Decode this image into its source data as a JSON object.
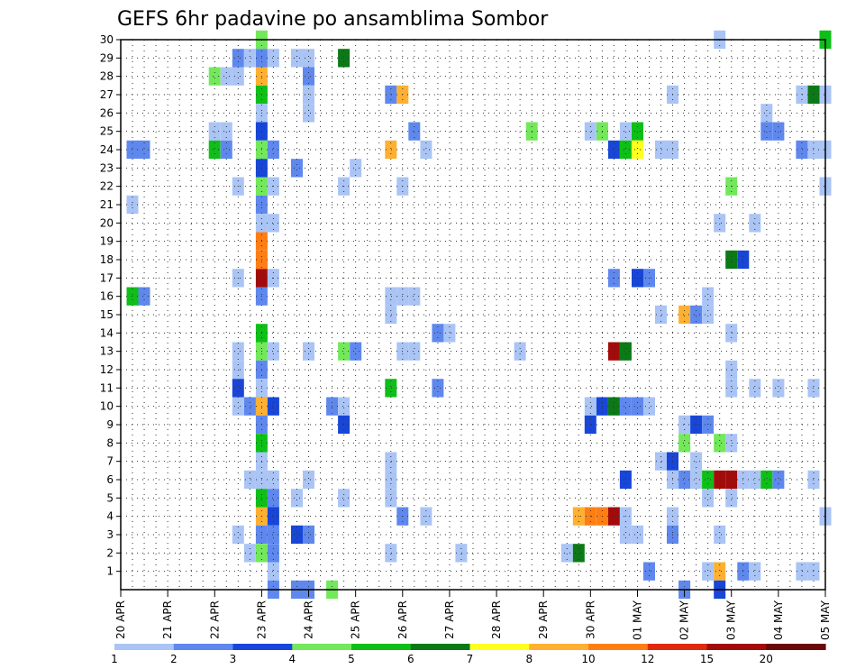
{
  "chart_data": {
    "type": "heatmap",
    "title": "GEFS 6hr padavine po ansamblima Sombor",
    "xlabel": "",
    "ylabel": "",
    "x_tick_labels": [
      "20 APR",
      "21 APR",
      "22 APR",
      "23 APR",
      "24 APR",
      "25 APR",
      "26 APR",
      "27 APR",
      "28 APR",
      "29 APR",
      "30 APR",
      "01 MAY",
      "02 MAY",
      "03 MAY",
      "04 MAY",
      "05 MAY"
    ],
    "y_tick_labels": [
      "1",
      "2",
      "3",
      "4",
      "5",
      "6",
      "7",
      "8",
      "9",
      "10",
      "11",
      "12",
      "13",
      "14",
      "15",
      "16",
      "17",
      "18",
      "19",
      "20",
      "21",
      "22",
      "23",
      "24",
      "25",
      "26",
      "27",
      "28",
      "29",
      "30"
    ],
    "x_range_days": [
      0,
      15
    ],
    "y_range": [
      0,
      30
    ],
    "grid": true,
    "legend_position": "bottom",
    "colorbar": {
      "labels": [
        "1",
        "2",
        "3",
        "4",
        "5",
        "6",
        "7",
        "8",
        "10",
        "12",
        "15",
        "20"
      ],
      "colors": [
        "#aac4f5",
        "#5f88ee",
        "#1846d8",
        "#72e85a",
        "#0ebf18",
        "#0b7a16",
        "#ffff20",
        "#ffb030",
        "#ff7e14",
        "#e02a0a",
        "#a30b0b",
        "#6b0808"
      ]
    },
    "cells": [
      [
        3.0,
        30,
        4
      ],
      [
        3.0,
        29,
        2
      ],
      [
        3.0,
        28,
        8
      ],
      [
        3.0,
        27,
        5
      ],
      [
        3.0,
        26,
        1
      ],
      [
        3.0,
        25,
        3
      ],
      [
        3.0,
        24,
        4
      ],
      [
        3.0,
        23,
        3
      ],
      [
        3.0,
        22,
        4
      ],
      [
        3.0,
        21,
        2
      ],
      [
        3.0,
        20,
        1
      ],
      [
        3.0,
        19,
        9
      ],
      [
        3.0,
        18,
        9
      ],
      [
        3.0,
        17,
        11
      ],
      [
        3.0,
        16,
        2
      ],
      [
        3.0,
        14,
        5
      ],
      [
        3.0,
        13,
        4
      ],
      [
        3.0,
        12,
        2
      ],
      [
        3.0,
        11,
        1
      ],
      [
        3.0,
        10,
        8
      ],
      [
        3.0,
        9,
        2
      ],
      [
        3.0,
        8,
        5
      ],
      [
        3.0,
        7,
        1
      ],
      [
        3.0,
        6,
        1
      ],
      [
        3.0,
        5,
        5
      ],
      [
        3.0,
        4,
        8
      ],
      [
        3.0,
        3,
        2
      ],
      [
        3.0,
        2,
        4
      ],
      [
        0.25,
        24,
        2
      ],
      [
        0.5,
        24,
        2
      ],
      [
        0.25,
        16,
        5
      ],
      [
        0.5,
        16,
        2
      ],
      [
        0.25,
        21,
        1
      ],
      [
        2.0,
        28,
        4
      ],
      [
        2.25,
        28,
        1
      ],
      [
        2.0,
        25,
        1
      ],
      [
        2.25,
        25,
        1
      ],
      [
        2.0,
        24,
        5
      ],
      [
        2.25,
        24,
        2
      ],
      [
        2.5,
        29,
        2
      ],
      [
        2.5,
        28,
        1
      ],
      [
        2.5,
        22,
        1
      ],
      [
        2.5,
        17,
        1
      ],
      [
        2.5,
        12,
        1
      ],
      [
        2.5,
        11,
        3
      ],
      [
        2.5,
        10,
        1
      ],
      [
        2.5,
        3,
        1
      ],
      [
        2.5,
        13,
        1
      ],
      [
        2.75,
        29,
        1
      ],
      [
        2.75,
        10,
        2
      ],
      [
        2.75,
        6,
        1
      ],
      [
        2.75,
        2,
        1
      ],
      [
        3.25,
        29,
        1
      ],
      [
        3.25,
        24,
        2
      ],
      [
        3.25,
        22,
        1
      ],
      [
        3.25,
        20,
        1
      ],
      [
        3.25,
        17,
        1
      ],
      [
        3.25,
        13,
        1
      ],
      [
        3.25,
        10,
        3
      ],
      [
        3.25,
        6,
        1
      ],
      [
        3.25,
        5,
        2
      ],
      [
        3.25,
        4,
        3
      ],
      [
        3.25,
        3,
        2
      ],
      [
        3.25,
        2,
        2
      ],
      [
        3.25,
        1,
        1
      ],
      [
        3.25,
        0,
        2
      ],
      [
        3.75,
        29,
        1
      ],
      [
        3.75,
        23,
        2
      ],
      [
        3.75,
        5,
        1
      ],
      [
        3.75,
        3,
        3
      ],
      [
        3.75,
        0,
        2
      ],
      [
        4.0,
        29,
        1
      ],
      [
        4.0,
        28,
        2
      ],
      [
        4.0,
        27,
        1
      ],
      [
        4.0,
        26,
        1
      ],
      [
        4.0,
        13,
        1
      ],
      [
        4.0,
        6,
        1
      ],
      [
        4.0,
        3,
        2
      ],
      [
        4.0,
        0,
        2
      ],
      [
        4.5,
        10,
        2
      ],
      [
        4.5,
        0,
        4
      ],
      [
        4.75,
        29,
        6
      ],
      [
        4.75,
        22,
        1
      ],
      [
        4.75,
        13,
        4
      ],
      [
        4.75,
        10,
        1
      ],
      [
        4.75,
        9,
        3
      ],
      [
        4.75,
        5,
        1
      ],
      [
        5.0,
        23,
        1
      ],
      [
        5.0,
        13,
        2
      ],
      [
        5.75,
        27,
        2
      ],
      [
        5.75,
        24,
        8
      ],
      [
        5.75,
        16,
        1
      ],
      [
        5.75,
        15,
        1
      ],
      [
        5.75,
        11,
        5
      ],
      [
        5.75,
        7,
        1
      ],
      [
        5.75,
        6,
        1
      ],
      [
        5.75,
        5,
        1
      ],
      [
        5.75,
        2,
        1
      ],
      [
        6.0,
        27,
        8
      ],
      [
        6.0,
        22,
        1
      ],
      [
        6.0,
        16,
        1
      ],
      [
        6.0,
        13,
        1
      ],
      [
        6.0,
        4,
        2
      ],
      [
        6.25,
        25,
        2
      ],
      [
        6.25,
        16,
        1
      ],
      [
        6.25,
        13,
        1
      ],
      [
        6.5,
        24,
        1
      ],
      [
        6.5,
        4,
        1
      ],
      [
        6.75,
        14,
        2
      ],
      [
        6.75,
        11,
        2
      ],
      [
        7.0,
        14,
        1
      ],
      [
        7.25,
        2,
        1
      ],
      [
        8.5,
        13,
        1
      ],
      [
        8.75,
        25,
        4
      ],
      [
        9.5,
        2,
        1
      ],
      [
        9.75,
        2,
        6
      ],
      [
        9.75,
        4,
        8
      ],
      [
        10.0,
        25,
        1
      ],
      [
        10.0,
        10,
        1
      ],
      [
        10.0,
        9,
        3
      ],
      [
        10.0,
        4,
        9
      ],
      [
        10.25,
        25,
        4
      ],
      [
        10.25,
        10,
        3
      ],
      [
        10.25,
        4,
        9
      ],
      [
        10.5,
        24,
        3
      ],
      [
        10.5,
        17,
        2
      ],
      [
        10.5,
        13,
        11
      ],
      [
        10.5,
        10,
        6
      ],
      [
        10.5,
        4,
        11
      ],
      [
        10.75,
        25,
        1
      ],
      [
        10.75,
        24,
        5
      ],
      [
        10.75,
        13,
        6
      ],
      [
        10.75,
        10,
        2
      ],
      [
        10.75,
        6,
        3
      ],
      [
        10.75,
        4,
        1
      ],
      [
        10.75,
        3,
        1
      ],
      [
        11.0,
        25,
        5
      ],
      [
        11.0,
        24,
        7
      ],
      [
        11.0,
        17,
        3
      ],
      [
        11.0,
        10,
        2
      ],
      [
        11.0,
        3,
        1
      ],
      [
        11.25,
        17,
        2
      ],
      [
        11.25,
        10,
        1
      ],
      [
        11.25,
        1,
        2
      ],
      [
        11.5,
        24,
        1
      ],
      [
        11.5,
        15,
        1
      ],
      [
        11.5,
        7,
        1
      ],
      [
        11.75,
        27,
        1
      ],
      [
        11.75,
        24,
        1
      ],
      [
        11.75,
        7,
        3
      ],
      [
        11.75,
        6,
        1
      ],
      [
        11.75,
        4,
        1
      ],
      [
        11.75,
        3,
        2
      ],
      [
        12.0,
        15,
        8
      ],
      [
        12.0,
        9,
        1
      ],
      [
        12.0,
        8,
        4
      ],
      [
        12.0,
        6,
        2
      ],
      [
        12.0,
        0,
        2
      ],
      [
        12.25,
        15,
        2
      ],
      [
        12.25,
        9,
        3
      ],
      [
        12.25,
        6,
        1
      ],
      [
        12.25,
        7,
        1
      ],
      [
        12.5,
        16,
        1
      ],
      [
        12.5,
        15,
        1
      ],
      [
        12.5,
        9,
        2
      ],
      [
        12.5,
        6,
        5
      ],
      [
        12.5,
        5,
        1
      ],
      [
        12.5,
        1,
        1
      ],
      [
        12.75,
        30,
        1
      ],
      [
        12.75,
        20,
        1
      ],
      [
        12.75,
        8,
        4
      ],
      [
        12.75,
        6,
        11
      ],
      [
        12.75,
        3,
        1
      ],
      [
        12.75,
        1,
        8
      ],
      [
        12.75,
        0,
        3
      ],
      [
        13.0,
        22,
        4
      ],
      [
        13.0,
        18,
        6
      ],
      [
        13.0,
        14,
        1
      ],
      [
        13.0,
        12,
        1
      ],
      [
        13.0,
        11,
        1
      ],
      [
        13.0,
        8,
        1
      ],
      [
        13.0,
        6,
        11
      ],
      [
        13.0,
        5,
        1
      ],
      [
        13.25,
        18,
        3
      ],
      [
        13.25,
        6,
        1
      ],
      [
        13.25,
        1,
        2
      ],
      [
        13.5,
        20,
        1
      ],
      [
        13.5,
        11,
        1
      ],
      [
        13.5,
        6,
        1
      ],
      [
        13.5,
        1,
        1
      ],
      [
        13.75,
        26,
        1
      ],
      [
        13.75,
        25,
        2
      ],
      [
        13.75,
        6,
        5
      ],
      [
        14.0,
        25,
        2
      ],
      [
        14.0,
        11,
        1
      ],
      [
        14.0,
        6,
        2
      ],
      [
        14.5,
        27,
        1
      ],
      [
        14.5,
        24,
        2
      ],
      [
        14.5,
        1,
        1
      ],
      [
        14.75,
        27,
        6
      ],
      [
        14.75,
        24,
        1
      ],
      [
        14.75,
        11,
        1
      ],
      [
        14.75,
        6,
        1
      ],
      [
        14.75,
        1,
        1
      ],
      [
        15.0,
        30,
        5
      ],
      [
        15.0,
        27,
        1
      ],
      [
        15.0,
        24,
        1
      ],
      [
        15.0,
        22,
        1
      ],
      [
        15.0,
        4,
        1
      ]
    ]
  }
}
